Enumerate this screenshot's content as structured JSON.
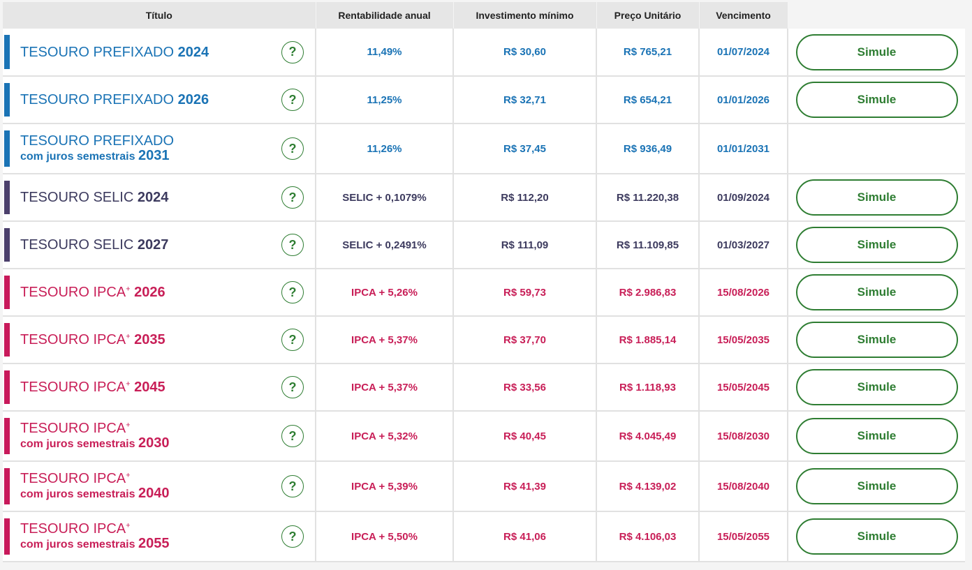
{
  "headers": {
    "titulo": "Título",
    "rentabilidade": "Rentabilidade anual",
    "investimento": "Investimento mínimo",
    "preco": "Preço Unitário",
    "vencimento": "Vencimento"
  },
  "help_symbol": "?",
  "colors": {
    "prefixado": "#1a73b5",
    "selic": "#4b3f6b",
    "ipca": "#c8195a",
    "button": "#2e7d32"
  },
  "icons": {
    "help": "question-circle-icon"
  },
  "rows": [
    {
      "name": "TESOURO PREFIXADO",
      "sup": "",
      "sub": "",
      "year": "2024",
      "rent": "11,49%",
      "inv": "R$ 30,60",
      "preco": "R$ 765,21",
      "venc": "01/07/2024",
      "button": "Simule"
    },
    {
      "name": "TESOURO PREFIXADO",
      "sup": "",
      "sub": "",
      "year": "2026",
      "rent": "11,25%",
      "inv": "R$ 32,71",
      "preco": "R$ 654,21",
      "venc": "01/01/2026",
      "button": "Simule"
    },
    {
      "name": "TESOURO PREFIXADO",
      "sup": "",
      "sub": "com juros semestrais",
      "year": "2031",
      "rent": "11,26%",
      "inv": "R$ 37,45",
      "preco": "R$ 936,49",
      "venc": "01/01/2031",
      "button": ""
    },
    {
      "name": "TESOURO SELIC",
      "sup": "",
      "sub": "",
      "year": "2024",
      "rent": "SELIC + 0,1079%",
      "inv": "R$ 112,20",
      "preco": "R$ 11.220,38",
      "venc": "01/09/2024",
      "button": "Simule"
    },
    {
      "name": "TESOURO SELIC",
      "sup": "",
      "sub": "",
      "year": "2027",
      "rent": "SELIC + 0,2491%",
      "inv": "R$ 111,09",
      "preco": "R$ 11.109,85",
      "venc": "01/03/2027",
      "button": "Simule"
    },
    {
      "name": "TESOURO IPCA",
      "sup": "+",
      "sub": "",
      "year": "2026",
      "rent": "IPCA + 5,26%",
      "inv": "R$ 59,73",
      "preco": "R$ 2.986,83",
      "venc": "15/08/2026",
      "button": "Simule"
    },
    {
      "name": "TESOURO IPCA",
      "sup": "+",
      "sub": "",
      "year": "2035",
      "rent": "IPCA + 5,37%",
      "inv": "R$ 37,70",
      "preco": "R$ 1.885,14",
      "venc": "15/05/2035",
      "button": "Simule"
    },
    {
      "name": "TESOURO IPCA",
      "sup": "+",
      "sub": "",
      "year": "2045",
      "rent": "IPCA + 5,37%",
      "inv": "R$ 33,56",
      "preco": "R$ 1.118,93",
      "venc": "15/05/2045",
      "button": "Simule"
    },
    {
      "name": "TESOURO IPCA",
      "sup": "+",
      "sub": "com juros semestrais",
      "year": "2030",
      "rent": "IPCA + 5,32%",
      "inv": "R$ 40,45",
      "preco": "R$ 4.045,49",
      "venc": "15/08/2030",
      "button": "Simule"
    },
    {
      "name": "TESOURO IPCA",
      "sup": "+",
      "sub": "com juros semestrais",
      "year": "2040",
      "rent": "IPCA + 5,39%",
      "inv": "R$ 41,39",
      "preco": "R$ 4.139,02",
      "venc": "15/08/2040",
      "button": "Simule"
    },
    {
      "name": "TESOURO IPCA",
      "sup": "+",
      "sub": "com juros semestrais",
      "year": "2055",
      "rent": "IPCA + 5,50%",
      "inv": "R$ 41,06",
      "preco": "R$ 4.106,03",
      "venc": "15/05/2055",
      "button": "Simule"
    }
  ]
}
